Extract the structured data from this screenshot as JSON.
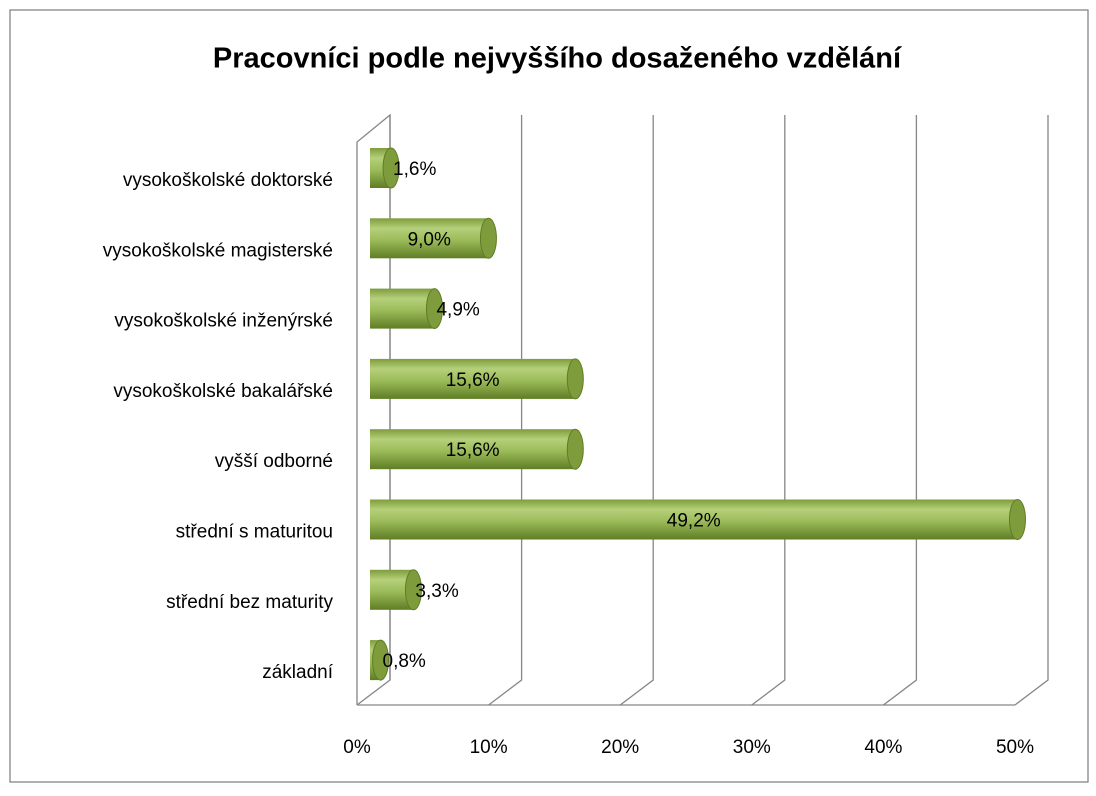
{
  "chart_data": {
    "type": "bar",
    "orientation": "horizontal",
    "title": "Pracovníci podle nejvyššího dosaženého vzdělání",
    "categories": [
      "vysokoškolské doktorské",
      "vysokoškolské magisterské",
      "vysokoškolské inženýrské",
      "vysokoškolské bakalářské",
      "vyšší odborné",
      "střední s maturitou",
      "střední bez maturity",
      "základní"
    ],
    "values": [
      1.6,
      9.0,
      4.9,
      15.6,
      15.6,
      49.2,
      3.3,
      0.8
    ],
    "value_labels": [
      "1,6%",
      "9,0%",
      "4,9%",
      "15,6%",
      "15,6%",
      "49,2%",
      "3,3%",
      "0,8%"
    ],
    "color": "#9bbb59",
    "xlim": [
      0,
      50
    ],
    "xticks": [
      {
        "value": 0,
        "label": "0%"
      },
      {
        "value": 10,
        "label": "10%"
      },
      {
        "value": 20,
        "label": "20%"
      },
      {
        "value": 30,
        "label": "30%"
      },
      {
        "value": 40,
        "label": "40%"
      },
      {
        "value": 50,
        "label": "50%"
      }
    ],
    "grid": true
  }
}
